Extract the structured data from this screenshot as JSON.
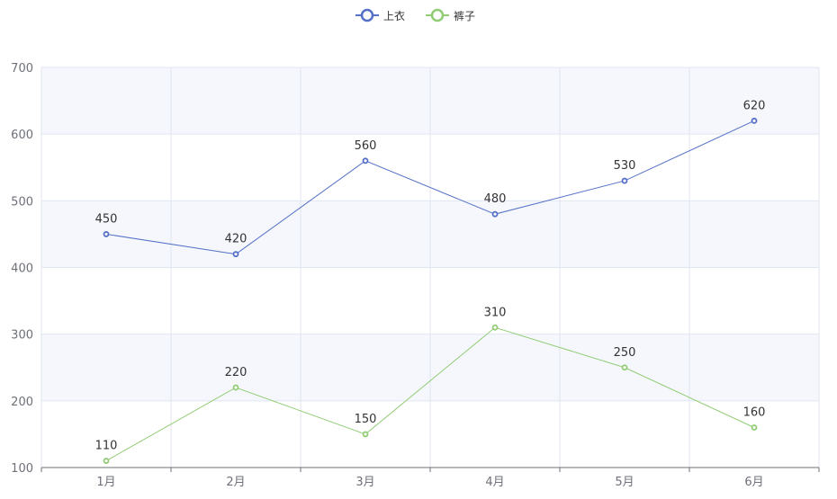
{
  "chart_data": {
    "type": "line",
    "categories": [
      "1月",
      "2月",
      "3月",
      "4月",
      "5月",
      "6月"
    ],
    "ylim": [
      100,
      700
    ],
    "yticks": [
      100,
      200,
      300,
      400,
      500,
      600,
      700
    ],
    "grid": true,
    "legend_position": "top-center",
    "series": [
      {
        "name": "上衣",
        "color": "#5470c6",
        "values": [
          450,
          420,
          560,
          480,
          530,
          620
        ]
      },
      {
        "name": "裤子",
        "color": "#91cc75",
        "values": [
          110,
          220,
          150,
          310,
          250,
          160
        ]
      }
    ]
  }
}
